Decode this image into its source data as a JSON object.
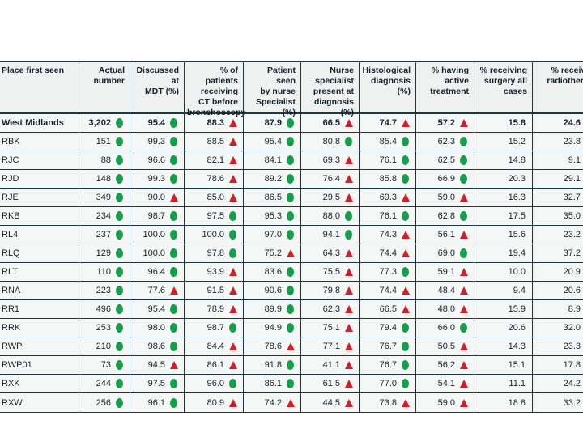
{
  "table": {
    "columns": [
      {
        "label": "Place first seen"
      },
      {
        "label": "Actual\nnumber"
      },
      {
        "label": "Discussed at\nMDT (%)"
      },
      {
        "label": "% of patients\nreceiving\nCT before\nbronchoscopy"
      },
      {
        "label": "Patient seen\nby nurse\nSpecialist\n(%)"
      },
      {
        "label": "Nurse\nspecialist\npresent at\ndiagnosis (%)"
      },
      {
        "label": "Histological\ndiagnosis (%)"
      },
      {
        "label": "% having\nactive\ntreatment"
      },
      {
        "label": "% receiving\nsurgery all\ncases"
      },
      {
        "label": "% receiving\nradiotherapy"
      }
    ],
    "rows": [
      {
        "label": "West Midlands",
        "bold": true,
        "cells": [
          {
            "v": "3,202",
            "i": "green"
          },
          {
            "v": "95.4",
            "i": "green"
          },
          {
            "v": "88.3",
            "i": "red"
          },
          {
            "v": "87.9",
            "i": "green"
          },
          {
            "v": "66.5",
            "i": "red"
          },
          {
            "v": "74.7",
            "i": "red"
          },
          {
            "v": "57.2",
            "i": "red"
          },
          {
            "v": "15.8",
            "i": null
          },
          {
            "v": "24.6",
            "i": null
          }
        ]
      },
      {
        "label": "RBK",
        "bold": false,
        "cells": [
          {
            "v": "151",
            "i": "green"
          },
          {
            "v": "99.3",
            "i": "green"
          },
          {
            "v": "88.5",
            "i": "red"
          },
          {
            "v": "95.4",
            "i": "green"
          },
          {
            "v": "80.8",
            "i": "green"
          },
          {
            "v": "85.4",
            "i": "green"
          },
          {
            "v": "62.3",
            "i": "green"
          },
          {
            "v": "15.2",
            "i": null
          },
          {
            "v": "23.8",
            "i": null
          }
        ]
      },
      {
        "label": "RJC",
        "bold": false,
        "cells": [
          {
            "v": "88",
            "i": "green"
          },
          {
            "v": "96.6",
            "i": "green"
          },
          {
            "v": "82.1",
            "i": "red"
          },
          {
            "v": "84.1",
            "i": "green"
          },
          {
            "v": "69.3",
            "i": "red"
          },
          {
            "v": "76.1",
            "i": "green"
          },
          {
            "v": "62.5",
            "i": "green"
          },
          {
            "v": "14.8",
            "i": null
          },
          {
            "v": "9.1",
            "i": null
          }
        ]
      },
      {
        "label": "RJD",
        "bold": false,
        "cells": [
          {
            "v": "148",
            "i": "green"
          },
          {
            "v": "99.3",
            "i": "green"
          },
          {
            "v": "78.6",
            "i": "red"
          },
          {
            "v": "89.2",
            "i": "green"
          },
          {
            "v": "76.4",
            "i": "red"
          },
          {
            "v": "85.8",
            "i": "green"
          },
          {
            "v": "66.9",
            "i": "green"
          },
          {
            "v": "20.3",
            "i": null
          },
          {
            "v": "29.1",
            "i": null
          }
        ]
      },
      {
        "label": "RJE",
        "bold": false,
        "cells": [
          {
            "v": "349",
            "i": "green"
          },
          {
            "v": "90.0",
            "i": "red"
          },
          {
            "v": "85.0",
            "i": "red"
          },
          {
            "v": "86.5",
            "i": "green"
          },
          {
            "v": "29.5",
            "i": "red"
          },
          {
            "v": "69.3",
            "i": "red"
          },
          {
            "v": "59.0",
            "i": "red"
          },
          {
            "v": "16.3",
            "i": null
          },
          {
            "v": "32.7",
            "i": null
          }
        ]
      },
      {
        "label": "RKB",
        "bold": false,
        "cells": [
          {
            "v": "234",
            "i": "green"
          },
          {
            "v": "98.7",
            "i": "green"
          },
          {
            "v": "97.5",
            "i": "green"
          },
          {
            "v": "95.3",
            "i": "green"
          },
          {
            "v": "88.0",
            "i": "green"
          },
          {
            "v": "76.1",
            "i": "green"
          },
          {
            "v": "62.8",
            "i": "green"
          },
          {
            "v": "17.5",
            "i": null
          },
          {
            "v": "35.0",
            "i": null
          }
        ]
      },
      {
        "label": "RL4",
        "bold": false,
        "cells": [
          {
            "v": "237",
            "i": "green"
          },
          {
            "v": "100.0",
            "i": "green"
          },
          {
            "v": "100.0",
            "i": "green"
          },
          {
            "v": "97.0",
            "i": "green"
          },
          {
            "v": "94.1",
            "i": "green"
          },
          {
            "v": "74.3",
            "i": "red"
          },
          {
            "v": "56.1",
            "i": "red"
          },
          {
            "v": "15.6",
            "i": null
          },
          {
            "v": "23.2",
            "i": null
          }
        ]
      },
      {
        "label": "RLQ",
        "bold": false,
        "cells": [
          {
            "v": "129",
            "i": "green"
          },
          {
            "v": "100.0",
            "i": "green"
          },
          {
            "v": "97.8",
            "i": "green"
          },
          {
            "v": "75.2",
            "i": "red"
          },
          {
            "v": "64.3",
            "i": "red"
          },
          {
            "v": "74.4",
            "i": "red"
          },
          {
            "v": "69.0",
            "i": "green"
          },
          {
            "v": "19.4",
            "i": null
          },
          {
            "v": "37.2",
            "i": null
          }
        ]
      },
      {
        "label": "RLT",
        "bold": false,
        "cells": [
          {
            "v": "110",
            "i": "green"
          },
          {
            "v": "96.4",
            "i": "green"
          },
          {
            "v": "93.9",
            "i": "red"
          },
          {
            "v": "83.6",
            "i": "green"
          },
          {
            "v": "75.5",
            "i": "red"
          },
          {
            "v": "77.3",
            "i": "green"
          },
          {
            "v": "59.1",
            "i": "red"
          },
          {
            "v": "10.0",
            "i": null
          },
          {
            "v": "20.9",
            "i": null
          }
        ]
      },
      {
        "label": "RNA",
        "bold": false,
        "cells": [
          {
            "v": "223",
            "i": "green"
          },
          {
            "v": "77.6",
            "i": "red"
          },
          {
            "v": "91.5",
            "i": "red"
          },
          {
            "v": "90.6",
            "i": "green"
          },
          {
            "v": "79.8",
            "i": "red"
          },
          {
            "v": "74.4",
            "i": "red"
          },
          {
            "v": "48.4",
            "i": "red"
          },
          {
            "v": "9.4",
            "i": null
          },
          {
            "v": "20.6",
            "i": null
          }
        ]
      },
      {
        "label": "RR1",
        "bold": false,
        "cells": [
          {
            "v": "496",
            "i": "green"
          },
          {
            "v": "95.4",
            "i": "green"
          },
          {
            "v": "78.9",
            "i": "red"
          },
          {
            "v": "89.9",
            "i": "green"
          },
          {
            "v": "62.3",
            "i": "red"
          },
          {
            "v": "66.5",
            "i": "red"
          },
          {
            "v": "48.0",
            "i": "red"
          },
          {
            "v": "15.9",
            "i": null
          },
          {
            "v": "8.9",
            "i": null
          }
        ]
      },
      {
        "label": "RRK",
        "bold": false,
        "cells": [
          {
            "v": "253",
            "i": "green"
          },
          {
            "v": "98.0",
            "i": "green"
          },
          {
            "v": "98.7",
            "i": "green"
          },
          {
            "v": "94.9",
            "i": "green"
          },
          {
            "v": "75.1",
            "i": "red"
          },
          {
            "v": "79.4",
            "i": "green"
          },
          {
            "v": "66.0",
            "i": "green"
          },
          {
            "v": "20.6",
            "i": null
          },
          {
            "v": "32.0",
            "i": null
          }
        ]
      },
      {
        "label": "RWP",
        "bold": false,
        "cells": [
          {
            "v": "210",
            "i": "green"
          },
          {
            "v": "98.6",
            "i": "green"
          },
          {
            "v": "84.4",
            "i": "red"
          },
          {
            "v": "78.6",
            "i": "red"
          },
          {
            "v": "77.1",
            "i": "red"
          },
          {
            "v": "76.7",
            "i": "green"
          },
          {
            "v": "50.5",
            "i": "red"
          },
          {
            "v": "14.3",
            "i": null
          },
          {
            "v": "23.3",
            "i": null
          }
        ]
      },
      {
        "label": "RWP01",
        "bold": false,
        "cells": [
          {
            "v": "73",
            "i": "green"
          },
          {
            "v": "94.5",
            "i": "red"
          },
          {
            "v": "86.1",
            "i": "red"
          },
          {
            "v": "91.8",
            "i": "green"
          },
          {
            "v": "41.1",
            "i": "red"
          },
          {
            "v": "76.7",
            "i": "green"
          },
          {
            "v": "56.2",
            "i": "red"
          },
          {
            "v": "15.1",
            "i": null
          },
          {
            "v": "17.8",
            "i": null
          }
        ]
      },
      {
        "label": "RXK",
        "bold": false,
        "cells": [
          {
            "v": "244",
            "i": "green"
          },
          {
            "v": "97.5",
            "i": "green"
          },
          {
            "v": "96.0",
            "i": "green"
          },
          {
            "v": "86.1",
            "i": "green"
          },
          {
            "v": "61.5",
            "i": "red"
          },
          {
            "v": "77.0",
            "i": "green"
          },
          {
            "v": "54.1",
            "i": "red"
          },
          {
            "v": "11.1",
            "i": null
          },
          {
            "v": "24.2",
            "i": null
          }
        ]
      },
      {
        "label": "RXW",
        "bold": false,
        "cells": [
          {
            "v": "256",
            "i": "green"
          },
          {
            "v": "96.1",
            "i": "green"
          },
          {
            "v": "80.9",
            "i": "red"
          },
          {
            "v": "74.2",
            "i": "red"
          },
          {
            "v": "44.5",
            "i": "red"
          },
          {
            "v": "73.8",
            "i": "red"
          },
          {
            "v": "59.0",
            "i": "red"
          },
          {
            "v": "18.8",
            "i": null
          },
          {
            "v": "33.2",
            "i": null
          }
        ]
      }
    ],
    "indicator_colors": {
      "green": "#1a9c4d",
      "red": "#cc2128"
    },
    "border_color": "#1c3648"
  }
}
